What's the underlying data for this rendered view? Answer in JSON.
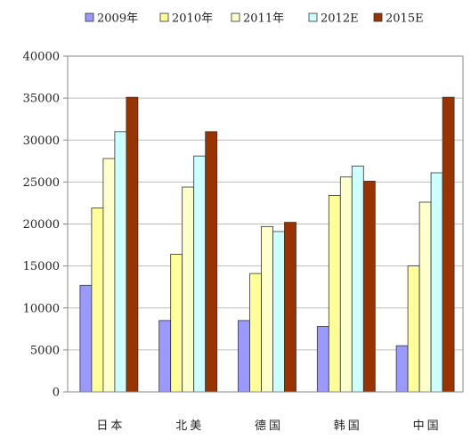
{
  "chart_data": {
    "type": "bar",
    "categories": [
      "日本",
      "北美",
      "德国",
      "韩国",
      "中国"
    ],
    "series": [
      {
        "name": "2009年",
        "color": "#9999ff",
        "values": [
          12700,
          8500,
          8500,
          7800,
          5500
        ]
      },
      {
        "name": "2010年",
        "color": "#ffff99",
        "values": [
          21900,
          16400,
          14100,
          23400,
          15000
        ]
      },
      {
        "name": "2011年",
        "color": "#ffffcc",
        "values": [
          27800,
          24400,
          19700,
          25600,
          22600
        ]
      },
      {
        "name": "2012E",
        "color": "#ccffff",
        "values": [
          31000,
          28100,
          19100,
          26900,
          26100
        ]
      },
      {
        "name": "2015E",
        "color": "#993300",
        "values": [
          35100,
          31000,
          20200,
          25100,
          35100
        ]
      }
    ],
    "yticks": [
      "0",
      "5000",
      "10000",
      "15000",
      "20000",
      "25000",
      "30000",
      "35000",
      "40000"
    ],
    "ylim": [
      0,
      40000
    ],
    "grid": true,
    "legend_position": "top"
  }
}
